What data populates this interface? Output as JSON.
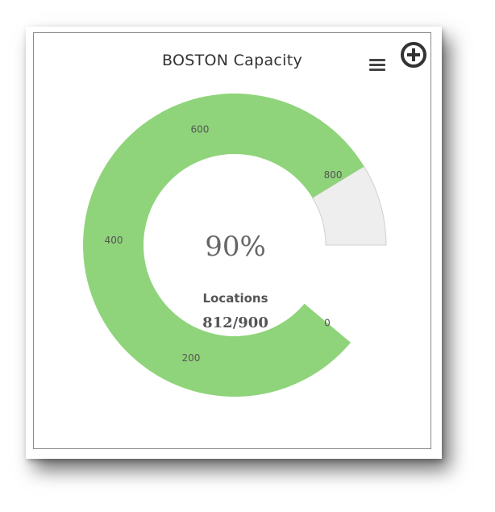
{
  "header": {
    "title": "BOSTON Capacity",
    "menu_icon": "hamburger-menu-icon",
    "add_icon": "plus-circle-icon"
  },
  "center": {
    "percent_text": "90%",
    "label": "Locations",
    "value_text": "812/900"
  },
  "chart_data": {
    "type": "gauge",
    "title": "BOSTON Capacity",
    "min": 0,
    "max": 900,
    "value": 812,
    "ticks": [
      0,
      200,
      400,
      600,
      800
    ],
    "colors": {
      "value_band": "#8fd47a",
      "remaining_band": "#eeeeee"
    }
  }
}
